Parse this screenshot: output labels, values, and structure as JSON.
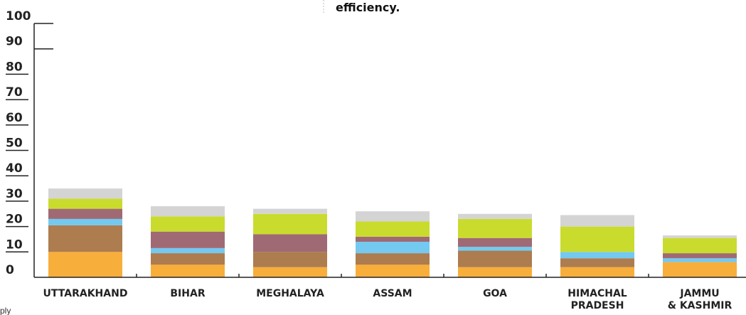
{
  "annotation_text": "efficiency.",
  "side_text": "ply",
  "colors": {
    "axis": "#222222",
    "note_line": "#bbbbbb",
    "series": [
      "#f8ae3b",
      "#ad7c4f",
      "#73c9ef",
      "#a06a74",
      "#c9dc2d",
      "#d4d4d4"
    ]
  },
  "chart_data": {
    "type": "bar",
    "stacked": true,
    "categories": [
      [
        "UTTARAKHAND"
      ],
      [
        "BIHAR"
      ],
      [
        "MEGHALAYA"
      ],
      [
        "ASSAM"
      ],
      [
        "GOA"
      ],
      [
        "HIMACHAL",
        "PRADESH"
      ],
      [
        "JAMMU",
        "& KASHMIR"
      ]
    ],
    "series": [
      {
        "values": [
          10,
          5,
          4,
          5,
          4,
          4,
          6
        ]
      },
      {
        "values": [
          10.5,
          4.5,
          6,
          4.5,
          6.5,
          3.5,
          0
        ]
      },
      {
        "values": [
          2.5,
          2,
          0,
          4.5,
          1.5,
          2.5,
          1.5
        ]
      },
      {
        "values": [
          4,
          6.5,
          7,
          2,
          3.5,
          0,
          2
        ]
      },
      {
        "values": [
          4,
          6,
          8,
          6,
          7.5,
          10,
          6
        ]
      },
      {
        "values": [
          4,
          4,
          2,
          4,
          2,
          4.5,
          1
        ]
      }
    ],
    "yticks": [
      0,
      10,
      20,
      30,
      40,
      50,
      60,
      70,
      80,
      90,
      100
    ],
    "ylim": [
      0,
      100
    ],
    "xlabel": "",
    "ylabel": "",
    "grid": false,
    "legend": "none"
  }
}
